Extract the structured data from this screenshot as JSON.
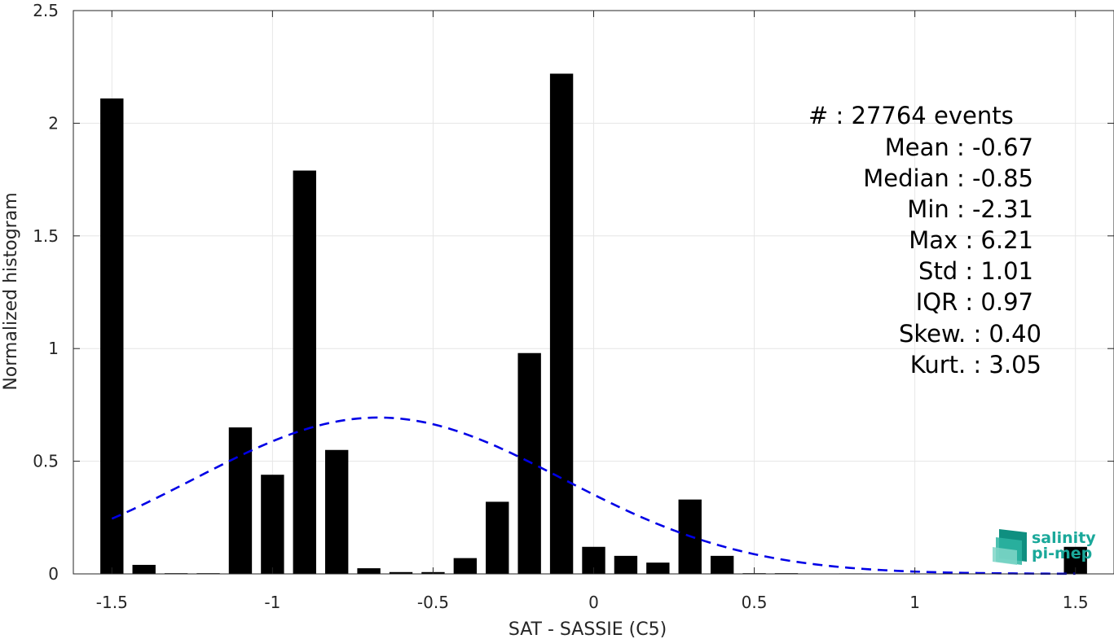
{
  "chart_data": {
    "type": "bar",
    "xlabel": "SAT - SASSIE (C5)",
    "ylabel": "Normalized histogram",
    "xlim": [
      -1.62,
      1.62
    ],
    "ylim": [
      0,
      2.5
    ],
    "xticks": [
      -1.5,
      -1,
      -0.5,
      0,
      0.5,
      1,
      1.5
    ],
    "xtick_labels": [
      "-1.5",
      "-1",
      "-0.5",
      "0",
      "0.5",
      "1",
      "1.5"
    ],
    "yticks": [
      0,
      0.5,
      1,
      1.5,
      2,
      2.5
    ],
    "ytick_labels": [
      "0",
      "0.5",
      "1",
      "1.5",
      "2",
      "2.5"
    ],
    "grid": true,
    "bar_color": "#000000",
    "curve_color": "#0000e6",
    "x": [
      -1.5,
      -1.4,
      -1.3,
      -1.2,
      -1.1,
      -1.0,
      -0.9,
      -0.8,
      -0.7,
      -0.6,
      -0.5,
      -0.4,
      -0.3,
      -0.2,
      -0.1,
      0.0,
      0.1,
      0.2,
      0.3,
      0.4,
      0.5,
      0.6,
      0.7,
      0.8,
      0.9,
      1.0,
      1.1,
      1.2,
      1.3,
      1.4,
      1.5
    ],
    "values": [
      2.11,
      0.04,
      0.003,
      0.003,
      0.65,
      0.44,
      1.79,
      0.55,
      0.025,
      0.008,
      0.008,
      0.07,
      0.32,
      0.98,
      2.22,
      0.12,
      0.08,
      0.05,
      0.33,
      0.08,
      0.003,
      0.003,
      0.0,
      0.002,
      0.0,
      0.0,
      0.0,
      0.0,
      0.0,
      0.0,
      0.12
    ],
    "fit": {
      "type": "normal",
      "mean": -0.67,
      "std": 0.575,
      "x_range": [
        -1.5,
        1.5
      ]
    }
  },
  "stats": [
    {
      "label": "#  : 27764 events",
      "text": "#  : 27764 events"
    },
    {
      "text": "Mean : -0.67"
    },
    {
      "text": "Median : -0.85"
    },
    {
      "text": "Min : -2.31"
    },
    {
      "text": "Max : 6.21"
    },
    {
      "text": "Std : 1.01"
    },
    {
      "text": "IQR : 0.97"
    },
    {
      "text": "Skew. : 0.40"
    },
    {
      "text": "Kurt. : 3.05"
    }
  ],
  "logo": {
    "line1": "salinity",
    "line2": "pi-mep",
    "color": "#1aa89a"
  }
}
